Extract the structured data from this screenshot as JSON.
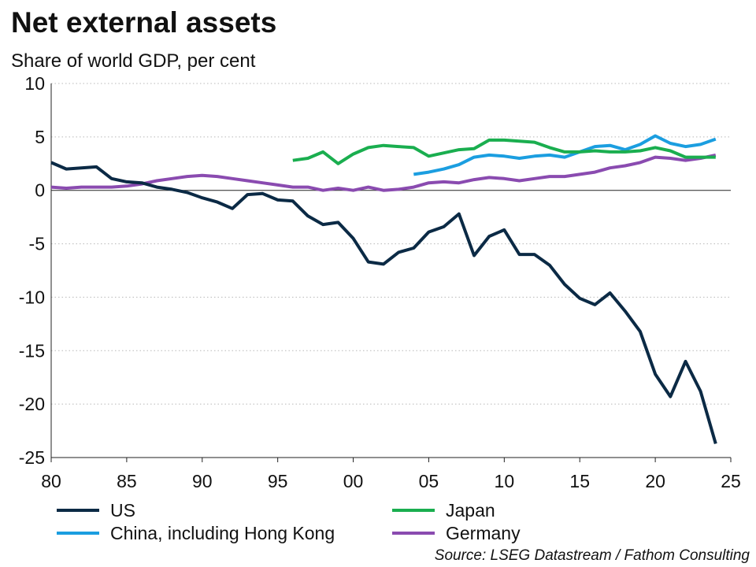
{
  "title": "Net external assets",
  "subtitle": "Share of world GDP, per cent",
  "source": "Source: LSEG Datastream / Fathom Consulting",
  "chart_data": {
    "type": "line",
    "title": "Net external assets",
    "ylabel": "Share of world GDP, per cent",
    "xlim": [
      1980,
      2025
    ],
    "ylim": [
      -25,
      10
    ],
    "x_ticks": [
      {
        "value": 1980,
        "label": "80"
      },
      {
        "value": 1985,
        "label": "85"
      },
      {
        "value": 1990,
        "label": "90"
      },
      {
        "value": 1995,
        "label": "95"
      },
      {
        "value": 2000,
        "label": "00"
      },
      {
        "value": 2005,
        "label": "05"
      },
      {
        "value": 2010,
        "label": "10"
      },
      {
        "value": 2015,
        "label": "15"
      },
      {
        "value": 2020,
        "label": "20"
      },
      {
        "value": 2025,
        "label": "25"
      }
    ],
    "y_ticks": [
      {
        "value": 10,
        "label": "10"
      },
      {
        "value": 5,
        "label": "5"
      },
      {
        "value": 0,
        "label": "0"
      },
      {
        "value": -5,
        "label": "-5"
      },
      {
        "value": -10,
        "label": "-10"
      },
      {
        "value": -15,
        "label": "-15"
      },
      {
        "value": -20,
        "label": "-20"
      },
      {
        "value": -25,
        "label": "-25"
      }
    ],
    "grid": "horizontal dotted",
    "legend": "bottom",
    "series": [
      {
        "name": "US",
        "color": "#0b2a45",
        "x": [
          1980,
          1981,
          1982,
          1983,
          1984,
          1985,
          1986,
          1987,
          1988,
          1989,
          1990,
          1991,
          1992,
          1993,
          1994,
          1995,
          1996,
          1997,
          1998,
          1999,
          2000,
          2001,
          2002,
          2003,
          2004,
          2005,
          2006,
          2007,
          2008,
          2009,
          2010,
          2011,
          2012,
          2013,
          2014,
          2015,
          2016,
          2017,
          2018,
          2019,
          2020,
          2021,
          2022,
          2023,
          2024
        ],
        "y": [
          2.6,
          2.0,
          2.1,
          2.2,
          1.1,
          0.8,
          0.7,
          0.3,
          0.1,
          -0.2,
          -0.7,
          -1.1,
          -1.7,
          -0.4,
          -0.3,
          -0.9,
          -1.0,
          -2.4,
          -3.2,
          -3.0,
          -4.5,
          -6.7,
          -6.9,
          -5.8,
          -5.4,
          -3.9,
          -3.4,
          -2.2,
          -6.1,
          -4.3,
          -3.7,
          -6.0,
          -6.0,
          -7.0,
          -8.8,
          -10.1,
          -10.7,
          -9.6,
          -11.3,
          -13.2,
          -17.2,
          -19.3,
          -16.0,
          -18.8,
          -23.7
        ]
      },
      {
        "name": "Japan",
        "color": "#1aae4f",
        "x": [
          1996,
          1997,
          1998,
          1999,
          2000,
          2001,
          2002,
          2003,
          2004,
          2005,
          2006,
          2007,
          2008,
          2009,
          2010,
          2011,
          2012,
          2013,
          2014,
          2015,
          2016,
          2017,
          2018,
          2019,
          2020,
          2021,
          2022,
          2023,
          2024
        ],
        "y": [
          2.8,
          3.0,
          3.6,
          2.5,
          3.4,
          4.0,
          4.2,
          4.1,
          4.0,
          3.2,
          3.5,
          3.8,
          3.9,
          4.7,
          4.7,
          4.6,
          4.5,
          4.0,
          3.6,
          3.6,
          3.7,
          3.6,
          3.6,
          3.7,
          4.0,
          3.7,
          3.1,
          3.1,
          3.1
        ]
      },
      {
        "name": "China, including Hong Kong",
        "color": "#1b9ee0",
        "x": [
          2004,
          2005,
          2006,
          2007,
          2008,
          2009,
          2010,
          2011,
          2012,
          2013,
          2014,
          2015,
          2016,
          2017,
          2018,
          2019,
          2020,
          2021,
          2022,
          2023,
          2024
        ],
        "y": [
          1.5,
          1.7,
          2.0,
          2.4,
          3.1,
          3.3,
          3.2,
          3.0,
          3.2,
          3.3,
          3.1,
          3.6,
          4.1,
          4.2,
          3.8,
          4.3,
          5.1,
          4.4,
          4.1,
          4.3,
          4.8
        ]
      },
      {
        "name": "Germany",
        "color": "#8a4bb0",
        "x": [
          1980,
          1981,
          1982,
          1983,
          1984,
          1985,
          1986,
          1987,
          1988,
          1989,
          1990,
          1991,
          1992,
          1993,
          1994,
          1995,
          1996,
          1997,
          1998,
          1999,
          2000,
          2001,
          2002,
          2003,
          2004,
          2005,
          2006,
          2007,
          2008,
          2009,
          2010,
          2011,
          2012,
          2013,
          2014,
          2015,
          2016,
          2017,
          2018,
          2019,
          2020,
          2021,
          2022,
          2023,
          2024
        ],
        "y": [
          0.3,
          0.2,
          0.3,
          0.3,
          0.3,
          0.4,
          0.6,
          0.9,
          1.1,
          1.3,
          1.4,
          1.3,
          1.1,
          0.9,
          0.7,
          0.5,
          0.3,
          0.3,
          0.0,
          0.2,
          0.0,
          0.3,
          0.0,
          0.1,
          0.3,
          0.7,
          0.8,
          0.7,
          1.0,
          1.2,
          1.1,
          0.9,
          1.1,
          1.3,
          1.3,
          1.5,
          1.7,
          2.1,
          2.3,
          2.6,
          3.1,
          3.0,
          2.8,
          3.0,
          3.3
        ]
      }
    ]
  },
  "legend": [
    {
      "label": "US",
      "color": "#0b2a45"
    },
    {
      "label": "China, including Hong Kong",
      "color": "#1b9ee0"
    },
    {
      "label": "Japan",
      "color": "#1aae4f"
    },
    {
      "label": "Germany",
      "color": "#8a4bb0"
    }
  ]
}
